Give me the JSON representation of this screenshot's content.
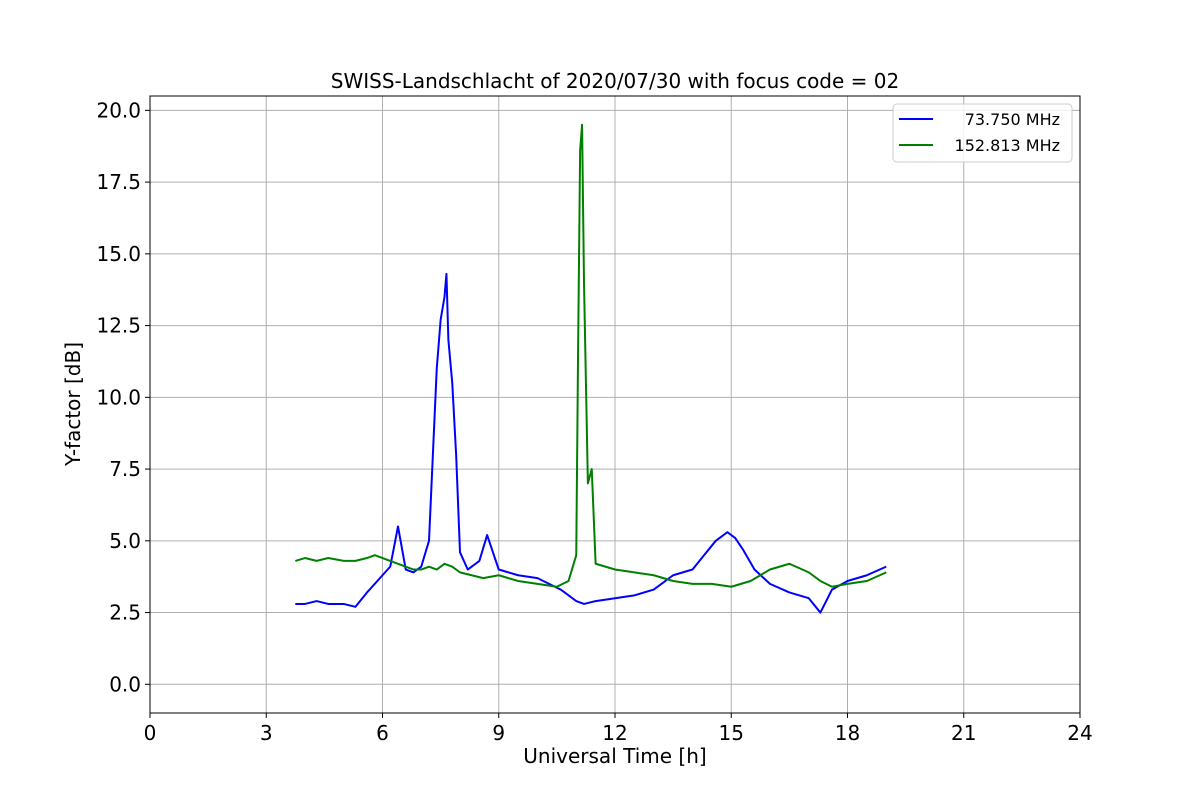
{
  "chart_data": {
    "type": "line",
    "title": "SWISS-Landschlacht of 2020/07/30 with focus code = 02",
    "xlabel": "Universal Time [h]",
    "ylabel": "Y-factor [dB]",
    "xlim": [
      0,
      24
    ],
    "ylim": [
      -1.0,
      20.5
    ],
    "x_ticks": [
      0,
      3,
      6,
      9,
      12,
      15,
      18,
      21,
      24
    ],
    "x_tick_labels": [
      "0",
      "3",
      "6",
      "9",
      "12",
      "15",
      "18",
      "21",
      "24"
    ],
    "y_ticks": [
      0,
      2.5,
      5,
      7.5,
      10,
      12.5,
      15,
      17.5,
      20
    ],
    "y_tick_labels": [
      "0.0",
      "2.5",
      "5.0",
      "7.5",
      "10.0",
      "12.5",
      "15.0",
      "17.5",
      "20.0"
    ],
    "grid": true,
    "legend_position": "top-right",
    "series": [
      {
        "name": "73.750 MHz",
        "color": "#0000ff",
        "x": [
          3.75,
          4.0,
          4.3,
          4.6,
          5.0,
          5.3,
          5.6,
          5.8,
          6.0,
          6.2,
          6.4,
          6.6,
          6.8,
          7.0,
          7.2,
          7.4,
          7.5,
          7.6,
          7.65,
          7.7,
          7.8,
          7.9,
          8.0,
          8.2,
          8.5,
          8.7,
          9.0,
          9.5,
          10.0,
          10.3,
          10.6,
          11.0,
          11.2,
          11.5,
          12.0,
          12.5,
          13.0,
          13.5,
          14.0,
          14.3,
          14.6,
          14.9,
          15.1,
          15.3,
          15.6,
          16.0,
          16.5,
          17.0,
          17.3,
          17.6,
          18.0,
          18.5,
          19.0
        ],
        "y": [
          2.8,
          2.8,
          2.9,
          2.8,
          2.8,
          2.7,
          3.2,
          3.5,
          3.8,
          4.1,
          5.5,
          4.0,
          3.9,
          4.1,
          5.0,
          11.0,
          12.7,
          13.5,
          14.3,
          12.0,
          10.5,
          8.0,
          4.6,
          4.0,
          4.3,
          5.2,
          4.0,
          3.8,
          3.7,
          3.5,
          3.3,
          2.9,
          2.8,
          2.9,
          3.0,
          3.1,
          3.3,
          3.8,
          4.0,
          4.5,
          5.0,
          5.3,
          5.1,
          4.7,
          4.0,
          3.5,
          3.2,
          3.0,
          2.5,
          3.3,
          3.6,
          3.8,
          4.1
        ]
      },
      {
        "name": "152.813 MHz",
        "color": "#008000",
        "x": [
          3.75,
          4.0,
          4.3,
          4.6,
          5.0,
          5.3,
          5.6,
          5.8,
          6.0,
          6.2,
          6.4,
          6.6,
          6.8,
          7.0,
          7.2,
          7.4,
          7.6,
          7.8,
          8.0,
          8.3,
          8.6,
          9.0,
          9.5,
          10.0,
          10.5,
          10.8,
          11.0,
          11.05,
          11.1,
          11.15,
          11.2,
          11.3,
          11.4,
          11.5,
          12.0,
          12.5,
          13.0,
          13.5,
          14.0,
          14.5,
          15.0,
          15.5,
          16.0,
          16.5,
          17.0,
          17.3,
          17.6,
          18.0,
          18.5,
          19.0
        ],
        "y": [
          4.3,
          4.4,
          4.3,
          4.4,
          4.3,
          4.3,
          4.4,
          4.5,
          4.4,
          4.3,
          4.2,
          4.1,
          4.0,
          4.0,
          4.1,
          4.0,
          4.2,
          4.1,
          3.9,
          3.8,
          3.7,
          3.8,
          3.6,
          3.5,
          3.4,
          3.6,
          4.5,
          12.0,
          18.6,
          19.5,
          14.0,
          7.0,
          7.5,
          4.2,
          4.0,
          3.9,
          3.8,
          3.6,
          3.5,
          3.5,
          3.4,
          3.6,
          4.0,
          4.2,
          3.9,
          3.6,
          3.4,
          3.5,
          3.6,
          3.9
        ]
      }
    ]
  }
}
